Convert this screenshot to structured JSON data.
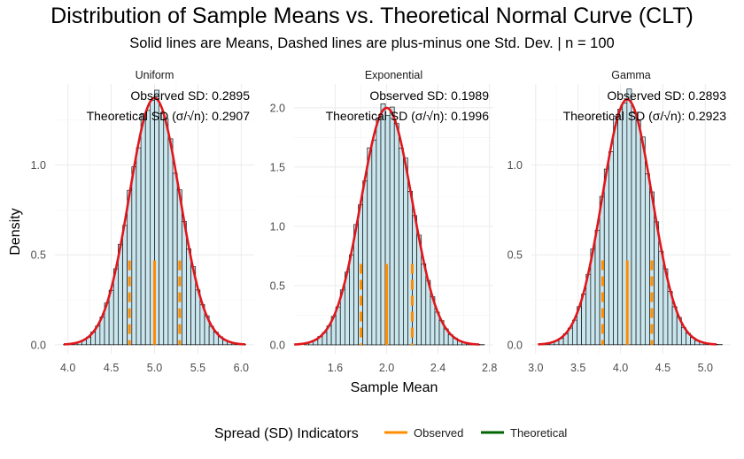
{
  "chart_data": {
    "type": "bar",
    "title": "Distribution of Sample Means vs. Theoretical Normal Curve (CLT)",
    "subtitle": "Solid lines are Means, Dashed lines are plus-minus one Std. Dev. | n = 100",
    "xlabel": "Sample Mean",
    "ylabel": "Density",
    "legend": {
      "title": "Spread (SD) Indicators",
      "placement": "bottom",
      "items": [
        {
          "label": "Observed",
          "color": "#FF8C00"
        },
        {
          "label": "Theoretical",
          "color": "#006400"
        }
      ]
    },
    "colors": {
      "bar_fill": "#C9E6EE",
      "bar_stroke": "#111111",
      "curve": "#E0161B",
      "observed": "#FF8C00",
      "theoretical": "#006400",
      "grid": "#EBEBEB"
    },
    "grid": true,
    "panels": [
      {
        "name": "Uniform",
        "mean": 5.0,
        "observed_sd": 0.2895,
        "theoretical_sd": 0.2907,
        "observed_sd_label": "Observed SD: 0.2895",
        "theoretical_sd_label": "Theoretical SD (σ/√n): 0.2907",
        "xlim": [
          3.85,
          6.15
        ],
        "ylim": [
          -0.05,
          1.45
        ],
        "xticks": [
          4.0,
          4.5,
          5.0,
          5.5,
          6.0
        ],
        "xtick_labels": [
          "4.0",
          "4.5",
          "5.0",
          "5.5",
          "6.0"
        ],
        "yticks": [
          0.0,
          0.5,
          1.0
        ],
        "ytick_labels": [
          "0.0",
          "0.5",
          "1.0"
        ],
        "hist_range": [
          3.95,
          6.05
        ],
        "bins": 40
      },
      {
        "name": "Exponential",
        "mean": 2.0,
        "observed_sd": 0.1989,
        "theoretical_sd": 0.1996,
        "observed_sd_label": "Observed SD: 0.1989",
        "theoretical_sd_label": "Theoretical SD (σ/√n): 0.1996",
        "xlim": [
          1.28,
          2.83
        ],
        "ylim": [
          -0.075,
          2.2
        ],
        "xticks": [
          1.6,
          2.0,
          2.4,
          2.8
        ],
        "xtick_labels": [
          "1.6",
          "2.0",
          "2.4",
          "2.8"
        ],
        "yticks": [
          0.0,
          0.5,
          1.0,
          1.5,
          2.0
        ],
        "ytick_labels": [
          "0.0",
          "0.5",
          "1.0",
          "1.5",
          "2.0"
        ],
        "hist_range": [
          1.36,
          2.76
        ],
        "bins": 40
      },
      {
        "name": "Gamma",
        "mean": 4.08,
        "observed_sd": 0.2893,
        "theoretical_sd": 0.2923,
        "observed_sd_label": "Observed SD: 0.2893",
        "theoretical_sd_label": "Theoretical SD (σ/√n): 0.2923",
        "xlim": [
          2.95,
          5.3
        ],
        "ylim": [
          -0.05,
          1.45
        ],
        "xticks": [
          3.0,
          3.5,
          4.0,
          4.5,
          5.0
        ],
        "xtick_labels": [
          "3.0",
          "3.5",
          "4.0",
          "4.5",
          "5.0"
        ],
        "yticks": [
          0.0,
          0.5,
          1.0
        ],
        "ytick_labels": [
          "0.0",
          "0.5",
          "1.0"
        ],
        "hist_range": [
          3.06,
          5.2
        ],
        "bins": 40
      }
    ]
  }
}
